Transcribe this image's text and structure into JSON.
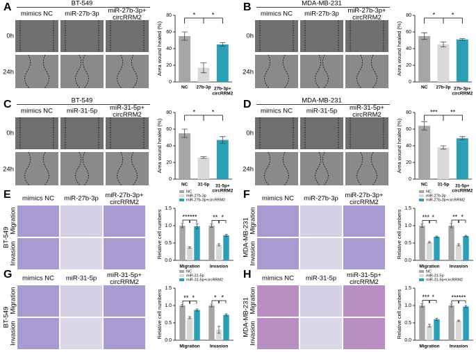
{
  "panels": [
    {
      "letter": "A",
      "title": "BT-549",
      "columns": [
        "mimics NC",
        "miR-27b-3p",
        "miR-27b-3p+\ncircRRM2"
      ],
      "rows": [
        "0h",
        "24h"
      ]
    },
    {
      "letter": "B",
      "title": "MDA-MB-231",
      "columns": [
        "mimics NC",
        "miR-27b-3p",
        "miR-27b-3p+\ncircRRM2"
      ],
      "rows": [
        "0h",
        "24h"
      ]
    },
    {
      "letter": "C",
      "title": "BT-549",
      "columns": [
        "mimics NC",
        "miR-31-5p",
        "miR-31-5p+\ncircRRM2"
      ],
      "rows": [
        "0h",
        "24h"
      ]
    },
    {
      "letter": "D",
      "title": "MDA-MB-231",
      "columns": [
        "mimics NC",
        "miR-31-5p",
        "miR-31-5p+\ncircRRM2"
      ],
      "rows": [
        "0h",
        "24h"
      ]
    },
    {
      "letter": "E",
      "title": "BT-549",
      "columns": [
        "mimics NC",
        "miR-27b-3p",
        "miR-27b-3p+\ncircRRM2"
      ],
      "rows": [
        "Migration",
        "Invasion"
      ]
    },
    {
      "letter": "F",
      "title": "MDA-MB-231",
      "columns": [
        "mimics NC",
        "miR-27b-3p",
        "miR-27b-3p+\ncircRRM2"
      ],
      "rows": [
        "Migration",
        "Invasion"
      ]
    },
    {
      "letter": "G",
      "title": "BT-549",
      "columns": [
        "mimics NC",
        "miR-31-5p",
        "miR-31-5p+\ncircRRM2"
      ],
      "rows": [
        "Migration",
        "Invasion"
      ]
    },
    {
      "letter": "H",
      "title": "MDA-MB-231",
      "columns": [
        "mimics NC",
        "miR-31-5p",
        "miR-31-5p+\ncircRRM2"
      ],
      "rows": [
        "Migration",
        "Invasion"
      ]
    }
  ],
  "chart_data": [
    {
      "type": "bar",
      "y_label": "Area wound healed (%)",
      "categories": [
        "NC",
        "27b-3p",
        "27b-3p+\ncircRRM2"
      ],
      "values": [
        55,
        17,
        45
      ],
      "errors": [
        5,
        6,
        2
      ],
      "colors": [
        "#a6a6a6",
        "#d9d9d9",
        "#2a9fb5"
      ],
      "ylim": [
        0,
        80
      ],
      "yticks": [
        0,
        20,
        40,
        60,
        80
      ],
      "significance": [
        "*",
        "*"
      ]
    },
    {
      "type": "bar",
      "y_label": "Area wound healed (%)",
      "categories": [
        "NC",
        "27b-3p",
        "27b-3p+\ncircRRM2"
      ],
      "values": [
        55,
        45,
        51
      ],
      "errors": [
        4,
        3,
        1
      ],
      "colors": [
        "#a6a6a6",
        "#d9d9d9",
        "#2a9fb5"
      ],
      "ylim": [
        0,
        80
      ],
      "yticks": [
        0,
        20,
        40,
        60,
        80
      ],
      "significance": [
        "*",
        "*"
      ]
    },
    {
      "type": "bar",
      "y_label": "Area wound healed (%)",
      "categories": [
        "NC",
        "31-5p",
        "31-5p+\ncircRRM2"
      ],
      "values": [
        55,
        26,
        47
      ],
      "errors": [
        5,
        1,
        4
      ],
      "colors": [
        "#a6a6a6",
        "#d9d9d9",
        "#2a9fb5"
      ],
      "ylim": [
        0,
        80
      ],
      "yticks": [
        0,
        20,
        40,
        60,
        80
      ],
      "significance": [
        "*",
        "*"
      ]
    },
    {
      "type": "bar",
      "y_label": "Area wound healed (%)",
      "categories": [
        "NC",
        "31-5p",
        "31-5p+\ncircRRM2"
      ],
      "values": [
        64,
        38,
        49
      ],
      "errors": [
        5,
        2,
        2
      ],
      "colors": [
        "#a6a6a6",
        "#d9d9d9",
        "#2a9fb5"
      ],
      "ylim": [
        0,
        80
      ],
      "yticks": [
        0,
        20,
        40,
        60,
        80
      ],
      "significance": [
        "***",
        "**"
      ]
    },
    {
      "type": "grouped_bar",
      "y_label": "Relative cell numbers",
      "categories": [
        "Migration",
        "Invasion"
      ],
      "series": [
        {
          "name": "NC",
          "color": "#a6a6a6",
          "values": [
            1,
            1
          ],
          "errors": [
            0.06,
            0.05
          ]
        },
        {
          "name": "miR-27b-3p",
          "color": "#d9d9d9",
          "values": [
            0.37,
            0.45
          ],
          "errors": [
            0.02,
            0.03
          ]
        },
        {
          "name": "miR-27b-3p+circRRM2",
          "color": "#2a9fb5",
          "values": [
            0.98,
            0.72
          ],
          "errors": [
            0.07,
            0.03
          ]
        }
      ],
      "ylim": [
        0,
        1.5
      ],
      "yticks": [
        {
          "value": 0,
          "label": "0.0"
        },
        {
          "value": 0.5,
          "label": "0.5"
        },
        {
          "value": 1,
          "label": "1.0"
        },
        {
          "value": 1.5,
          "label": "1.5"
        }
      ],
      "significance": [
        [
          "***",
          "***"
        ],
        [
          "**",
          "*"
        ]
      ]
    },
    {
      "type": "grouped_bar",
      "y_label": "Relative cell numbers",
      "categories": [
        "Migration",
        "Invasion"
      ],
      "series": [
        {
          "name": "NC",
          "color": "#a6a6a6",
          "values": [
            1,
            1
          ],
          "errors": [
            0.05,
            0.06
          ]
        },
        {
          "name": "miR-27b-3p",
          "color": "#d9d9d9",
          "values": [
            0.52,
            0.45
          ],
          "errors": [
            0.02,
            0.03
          ]
        },
        {
          "name": "miR-27b-3p+circRRM2",
          "color": "#2a9fb5",
          "values": [
            0.68,
            0.7
          ],
          "errors": [
            0.02,
            0.02
          ]
        }
      ],
      "ylim": [
        0,
        1.5
      ],
      "yticks": [
        {
          "value": 0,
          "label": "0.0"
        },
        {
          "value": 0.5,
          "label": "0.5"
        },
        {
          "value": 1,
          "label": "1.0"
        },
        {
          "value": 1.5,
          "label": "1.5"
        }
      ],
      "significance": [
        [
          "***",
          "*"
        ],
        [
          "**",
          "*"
        ]
      ]
    },
    {
      "type": "grouped_bar",
      "y_label": "Relative cell numbers",
      "categories": [
        "Migration",
        "Invasion"
      ],
      "series": [
        {
          "name": "NC",
          "color": "#a6a6a6",
          "values": [
            1,
            1
          ],
          "errors": [
            0.03,
            0.04
          ]
        },
        {
          "name": "miR-31-5p",
          "color": "#d9d9d9",
          "values": [
            0.65,
            0.3
          ],
          "errors": [
            0.03,
            0.1
          ]
        },
        {
          "name": "miR-31-5p+circRRM2",
          "color": "#2a9fb5",
          "values": [
            0.87,
            0.73
          ],
          "errors": [
            0.03,
            0.03
          ]
        }
      ],
      "ylim": [
        0,
        1.5
      ],
      "yticks": [
        {
          "value": 0,
          "label": "0.0"
        },
        {
          "value": 0.5,
          "label": "0.5"
        },
        {
          "value": 1,
          "label": "1.0"
        },
        {
          "value": 1.5,
          "label": "1.5"
        }
      ],
      "significance": [
        [
          "**",
          "*"
        ],
        [
          "*",
          "*"
        ]
      ]
    },
    {
      "type": "grouped_bar",
      "y_label": "Relative cell numbers",
      "categories": [
        "Migration",
        "Invasion"
      ],
      "series": [
        {
          "name": "NC",
          "color": "#a6a6a6",
          "values": [
            1,
            1
          ],
          "errors": [
            0.05,
            0.04
          ]
        },
        {
          "name": "miR-31-5p",
          "color": "#d9d9d9",
          "values": [
            0.42,
            0.56
          ],
          "errors": [
            0.04,
            0.02
          ]
        },
        {
          "name": "miR-31-5p+circRRM2",
          "color": "#2a9fb5",
          "values": [
            0.6,
            0.97
          ],
          "errors": [
            0.03,
            0.03
          ]
        }
      ],
      "ylim": [
        0,
        1.5
      ],
      "yticks": [
        {
          "value": 0,
          "label": "0.0"
        },
        {
          "value": 0.5,
          "label": "0.5"
        },
        {
          "value": 1,
          "label": "1.0"
        },
        {
          "value": 1.5,
          "label": "1.5"
        }
      ],
      "significance": [
        [
          "***",
          "*"
        ],
        [
          "***",
          "***"
        ]
      ]
    }
  ]
}
